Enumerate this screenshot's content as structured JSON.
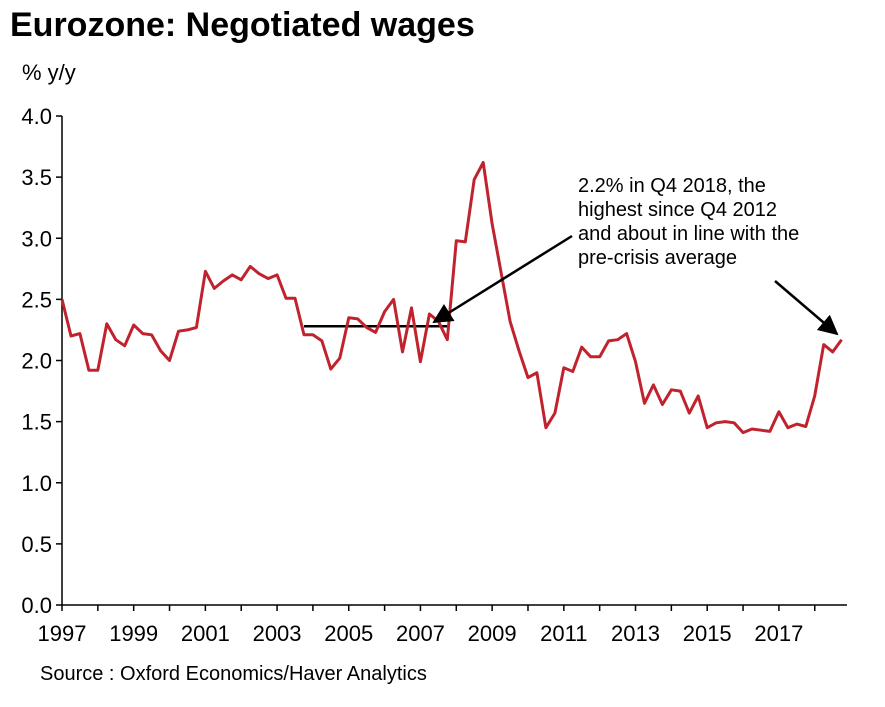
{
  "chart_data": {
    "type": "line",
    "title": "Eurozone: Negotiated wages",
    "ylabel": "% y/y",
    "xlabel": "",
    "source": "Source : Oxford Economics/Haver Analytics",
    "annotation": "2.2% in Q4 2018, the\nhighest since Q4 2012\nand about in line with the\npre-crisis average",
    "ylim": [
      0,
      4
    ],
    "yticks": [
      "4.0",
      "3.5",
      "3.0",
      "2.5",
      "2.0",
      "1.5",
      "1.0",
      "0.5",
      "0.0"
    ],
    "xlim": [
      1997.0,
      2018.9
    ],
    "xticks": [
      "1997",
      "1999",
      "2001",
      "2003",
      "2005",
      "2007",
      "2009",
      "2011",
      "2013",
      "2015",
      "2017"
    ],
    "grid": false,
    "legend": "none",
    "line_color": "#c0232e",
    "reference_line": {
      "value": 2.28,
      "from": "Q4 2003",
      "to": "Q4 2007"
    },
    "series": [
      {
        "values": [
          2.5,
          2.2,
          2.22,
          1.92,
          1.92,
          2.3,
          2.17,
          2.12,
          2.29,
          2.22,
          2.21,
          2.08,
          2.0,
          2.24,
          2.25,
          2.27,
          2.73,
          2.59,
          2.65,
          2.7,
          2.66,
          2.77,
          2.71,
          2.67,
          2.7,
          2.51,
          2.51,
          2.21,
          2.21,
          2.16,
          1.93,
          2.02,
          2.35,
          2.34,
          2.27,
          2.23,
          2.4,
          2.5,
          2.07,
          2.43,
          1.99,
          2.38,
          2.32,
          2.17,
          2.98,
          2.97,
          3.48,
          3.62,
          3.12,
          2.72,
          2.32,
          2.08,
          1.86,
          1.9,
          1.45,
          1.57,
          1.94,
          1.91,
          2.11,
          2.03,
          2.03,
          2.16,
          2.17,
          2.22,
          1.99,
          1.65,
          1.8,
          1.64,
          1.76,
          1.75,
          1.57,
          1.71,
          1.45,
          1.49,
          1.5,
          1.49,
          1.41,
          1.44,
          1.43,
          1.42,
          1.58,
          1.45,
          1.48,
          1.46,
          1.71,
          2.13,
          2.07,
          2.17
        ]
      }
    ]
  }
}
